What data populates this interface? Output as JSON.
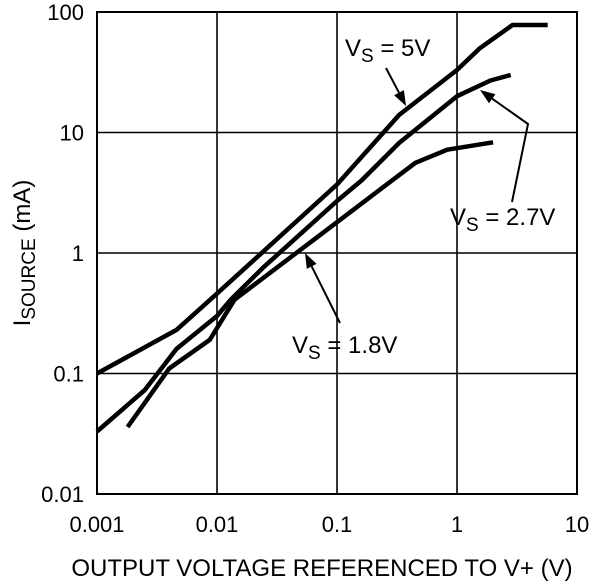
{
  "chart_data": {
    "type": "line",
    "xscale": "log",
    "yscale": "log",
    "xlim": [
      0.001,
      10
    ],
    "ylim": [
      0.01,
      100
    ],
    "grid": true,
    "line_color": "#000000",
    "background": "#ffffff",
    "xlabel": "OUTPUT VOLTAGE REFERENCED TO V+ (V)",
    "ylabel": {
      "main": "I",
      "sub": "SOURCE",
      "rest": " (mA)"
    },
    "x_ticks": [
      {
        "value": 0.001,
        "label": "0.001"
      },
      {
        "value": 0.01,
        "label": "0.01"
      },
      {
        "value": 0.1,
        "label": "0.1"
      },
      {
        "value": 1,
        "label": "1"
      },
      {
        "value": 10,
        "label": "10"
      }
    ],
    "y_ticks": [
      {
        "value": 0.01,
        "label": "0.01"
      },
      {
        "value": 0.1,
        "label": "0.1"
      },
      {
        "value": 1,
        "label": "1"
      },
      {
        "value": 10,
        "label": "10"
      },
      {
        "value": 100,
        "label": "100"
      }
    ],
    "series": [
      {
        "label": {
          "main": "V",
          "sub": "S",
          "rest": " = 5V"
        },
        "x": [
          0.001,
          0.0046,
          0.01,
          0.1,
          0.33,
          1,
          1.55,
          2.9,
          5.7
        ],
        "y": [
          0.1,
          0.23,
          0.46,
          3.7,
          14,
          33,
          50,
          78,
          78
        ]
      },
      {
        "label": {
          "main": "V",
          "sub": "S",
          "rest": " = 2.7V"
        },
        "x": [
          0.001,
          0.0025,
          0.0046,
          0.01,
          0.013,
          0.024,
          0.1,
          0.16,
          0.33,
          1,
          1.9,
          2.8
        ],
        "y": [
          0.033,
          0.073,
          0.16,
          0.3,
          0.41,
          0.75,
          2.7,
          4,
          8.2,
          20,
          27,
          30
        ]
      },
      {
        "label": {
          "main": "V",
          "sub": "S",
          "rest": " = 1.8V"
        },
        "x": [
          0.0018,
          0.004,
          0.0087,
          0.014,
          0.1,
          0.45,
          0.83,
          2
        ],
        "y": [
          0.036,
          0.11,
          0.19,
          0.41,
          1.8,
          5.6,
          7.2,
          8.3
        ]
      }
    ]
  }
}
